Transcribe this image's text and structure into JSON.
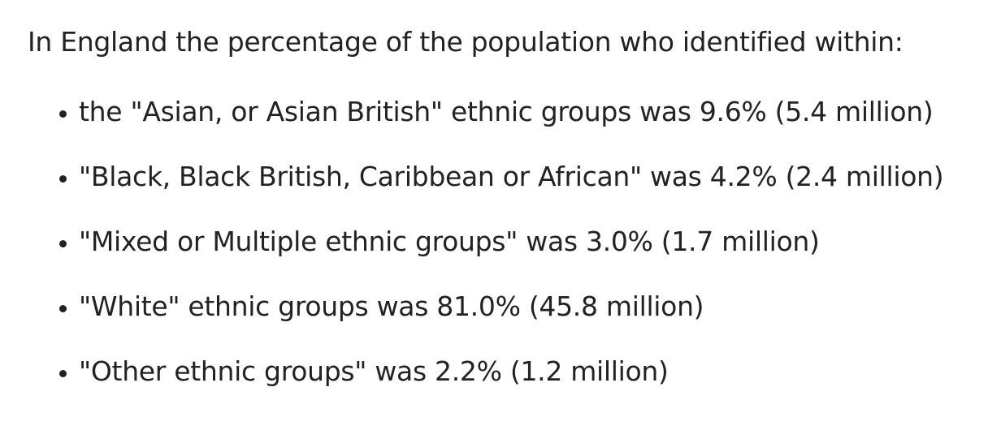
{
  "intro": "In England the percentage of the population who identified within:",
  "items": [
    "the \"Asian, or Asian British\" ethnic groups was 9.6% (5.4 million)",
    "\"Black, Black British, Caribbean or African\" was 4.2% (2.4 million)",
    "\"Mixed or Multiple ethnic groups\" was 3.0% (1.7 million)",
    "\"White\" ethnic groups was 81.0% (45.8 million)",
    "\"Other ethnic groups\" was 2.2% (1.2 million)"
  ]
}
